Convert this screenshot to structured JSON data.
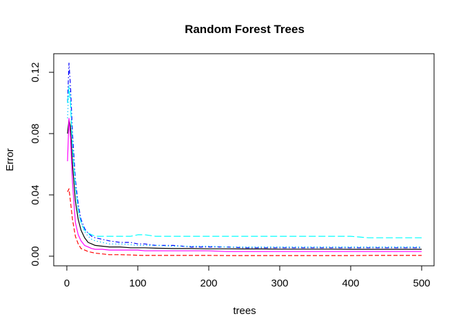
{
  "chart_data": {
    "type": "line",
    "title": "Random Forest Trees",
    "xlabel": "trees",
    "ylabel": "Error",
    "xlim": [
      0,
      500
    ],
    "ylim": [
      0,
      0.12
    ],
    "x_ticks": [
      0,
      100,
      200,
      300,
      400,
      500
    ],
    "y_ticks": [
      0.0,
      0.04,
      0.08,
      0.12
    ],
    "y_tick_labels": [
      "0.00",
      "0.04",
      "0.08",
      "0.12"
    ],
    "grid": false,
    "legend": "none",
    "x": [
      1,
      3,
      5,
      8,
      12,
      16,
      20,
      25,
      30,
      35,
      40,
      50,
      60,
      75,
      90,
      100,
      110,
      125,
      150,
      175,
      200,
      225,
      250,
      275,
      300,
      325,
      350,
      375,
      400,
      425,
      450,
      475,
      500
    ],
    "series": [
      {
        "color": "#000000",
        "dash": "solid",
        "values": [
          0.08,
          0.089,
          0.085,
          0.06,
          0.036,
          0.024,
          0.017,
          0.012,
          0.009,
          0.008,
          0.007,
          0.0065,
          0.006,
          0.006,
          0.0055,
          0.0055,
          0.0055,
          0.0052,
          0.005,
          0.005,
          0.0048,
          0.0048,
          0.0047,
          0.0047,
          0.0046,
          0.0046,
          0.0046,
          0.0046,
          0.0045,
          0.0045,
          0.0045,
          0.0045,
          0.0045
        ]
      },
      {
        "color": "#ff0000",
        "dash": "dashed",
        "values": [
          0.042,
          0.044,
          0.036,
          0.024,
          0.013,
          0.008,
          0.005,
          0.004,
          0.003,
          0.0025,
          0.002,
          0.0015,
          0.001,
          0.001,
          0.0008,
          0.0006,
          0.0005,
          0.0005,
          0.0005,
          0.0005,
          0.0005,
          0.0004,
          0.0004,
          0.0004,
          0.0004,
          0.0004,
          0.0004,
          0.0004,
          0.0004,
          0.0005,
          0.0005,
          0.0005,
          0.0005
        ]
      },
      {
        "color": "#ff00ff",
        "dash": "solid",
        "values": [
          0.062,
          0.09,
          0.078,
          0.048,
          0.022,
          0.014,
          0.01,
          0.007,
          0.006,
          0.005,
          0.0045,
          0.0045,
          0.004,
          0.004,
          0.004,
          0.004,
          0.0035,
          0.0035,
          0.0035,
          0.0035,
          0.0035,
          0.003,
          0.003,
          0.003,
          0.003,
          0.003,
          0.003,
          0.003,
          0.003,
          0.003,
          0.003,
          0.003,
          0.003
        ]
      },
      {
        "color": "#0000ff",
        "dash": "dashdot",
        "values": [
          0.1,
          0.126,
          0.112,
          0.08,
          0.05,
          0.034,
          0.024,
          0.018,
          0.015,
          0.013,
          0.012,
          0.011,
          0.01,
          0.009,
          0.009,
          0.008,
          0.008,
          0.007,
          0.007,
          0.006,
          0.006,
          0.006,
          0.0055,
          0.0055,
          0.0055,
          0.0055,
          0.0055,
          0.0055,
          0.0055,
          0.0055,
          0.0055,
          0.0055,
          0.0055
        ]
      },
      {
        "color": "#00bfff",
        "dash": "dotted",
        "values": [
          0.09,
          0.112,
          0.105,
          0.07,
          0.045,
          0.03,
          0.022,
          0.016,
          0.013,
          0.011,
          0.01,
          0.009,
          0.008,
          0.008,
          0.0075,
          0.007,
          0.007,
          0.007,
          0.0065,
          0.0065,
          0.0065,
          0.006,
          0.006,
          0.006,
          0.006,
          0.006,
          0.006,
          0.006,
          0.006,
          0.006,
          0.006,
          0.006,
          0.006
        ]
      },
      {
        "color": "#00ffff",
        "dash": "longdash",
        "values": [
          0.1,
          0.11,
          0.1,
          0.072,
          0.046,
          0.03,
          0.022,
          0.017,
          0.015,
          0.014,
          0.013,
          0.013,
          0.013,
          0.013,
          0.013,
          0.014,
          0.014,
          0.013,
          0.013,
          0.013,
          0.013,
          0.013,
          0.013,
          0.013,
          0.013,
          0.013,
          0.013,
          0.013,
          0.013,
          0.012,
          0.012,
          0.012,
          0.012
        ]
      }
    ]
  }
}
